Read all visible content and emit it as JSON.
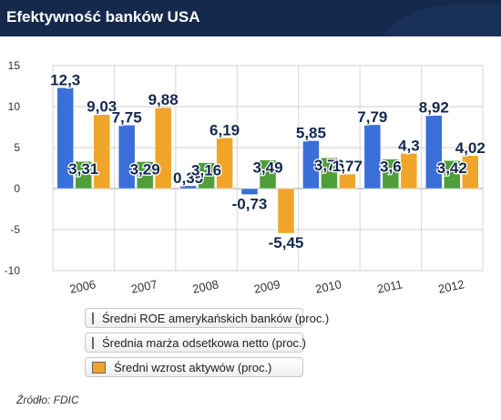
{
  "title": "Efektywność banków USA",
  "source": "Źródło: FDIC",
  "chart_data": {
    "type": "bar",
    "categories": [
      "2006",
      "2007",
      "2008",
      "2009",
      "2010",
      "2011",
      "2012"
    ],
    "series": [
      {
        "name": "Średni ROE amerykańskich banków (proc.)",
        "color": "#3a6fd8",
        "values": [
          12.3,
          7.75,
          0.35,
          -0.73,
          5.85,
          7.79,
          8.92
        ],
        "labels": [
          "12,3",
          "7,75",
          "0,35",
          "-0,73",
          "5,85",
          "7,79",
          "8,92"
        ]
      },
      {
        "name": "Średnia marża odsetkowa netto (proc.)",
        "color": "#4e9e3a",
        "values": [
          3.31,
          3.29,
          3.16,
          3.49,
          3.76,
          3.6,
          3.42
        ],
        "labels": [
          "3,31",
          "3,29",
          "3,16",
          "3,49",
          "3,76",
          "3,6",
          "3,42"
        ]
      },
      {
        "name": "Średni wzrost aktywów (proc.)",
        "color": "#f0a52a",
        "values": [
          9.03,
          9.88,
          6.19,
          -5.45,
          1.77,
          4.3,
          4.02
        ],
        "labels": [
          "9,03",
          "9,88",
          "6,19",
          "-5,45",
          "1,77",
          "4,3",
          "4,02"
        ]
      }
    ],
    "yticks": [
      "15",
      "10",
      "5",
      "0",
      "-5",
      "-10"
    ],
    "ylim": [
      -10,
      15
    ],
    "legend_position": "bottom-left",
    "grid": true
  }
}
